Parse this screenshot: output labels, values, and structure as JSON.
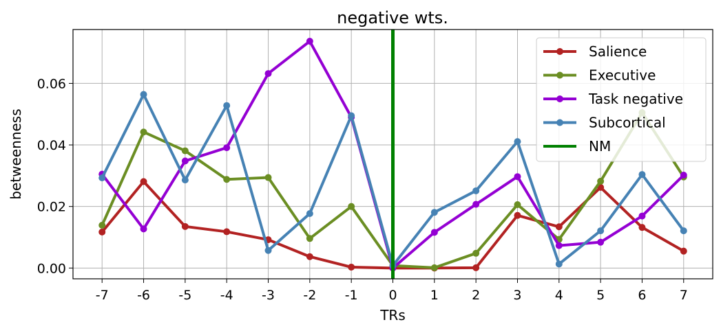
{
  "chart_data": {
    "type": "line",
    "title": "negative wts.",
    "xlabel": "TRs",
    "ylabel": "betweenness",
    "x": [
      -7,
      -6,
      -5,
      -4,
      -3,
      -2,
      -1,
      0,
      1,
      2,
      3,
      4,
      5,
      6,
      7
    ],
    "xtick_labels": [
      "-7",
      "-6",
      "-5",
      "-4",
      "-3",
      "-2",
      "-1",
      "0",
      "1",
      "2",
      "3",
      "4",
      "5",
      "6",
      "7"
    ],
    "ylim": [
      -0.0035,
      0.0775
    ],
    "yticks": [
      0.0,
      0.02,
      0.04,
      0.06
    ],
    "ytick_labels": [
      "0.00",
      "0.02",
      "0.04",
      "0.06"
    ],
    "grid": true,
    "legend_position": "top-right",
    "series": [
      {
        "name": "Salience",
        "color": "#b22222",
        "values": [
          0.0117,
          0.0281,
          0.0135,
          0.0118,
          0.0092,
          0.0037,
          0.0003,
          0.0,
          0.0,
          0.0001,
          0.0171,
          0.0134,
          0.0262,
          0.0132,
          0.0055
        ]
      },
      {
        "name": "Executive",
        "color": "#6b8e23",
        "values": [
          0.0139,
          0.0442,
          0.0381,
          0.0288,
          0.0294,
          0.0096,
          0.02,
          0.0008,
          0.0001,
          0.0048,
          0.0206,
          0.0093,
          0.0282,
          0.0505,
          0.0296
        ]
      },
      {
        "name": "Task negative",
        "color": "#9400d3",
        "values": [
          0.0305,
          0.0127,
          0.0348,
          0.0391,
          0.0632,
          0.0737,
          0.049,
          0.0,
          0.0116,
          0.0207,
          0.0297,
          0.0073,
          0.0084,
          0.0169,
          0.0302
        ]
      },
      {
        "name": "Subcortical",
        "color": "#4682b4",
        "values": [
          0.0293,
          0.0564,
          0.0286,
          0.0528,
          0.0057,
          0.0177,
          0.0495,
          0.0008,
          0.0181,
          0.0251,
          0.0411,
          0.0013,
          0.0121,
          0.0304,
          0.0121
        ]
      }
    ],
    "vline": {
      "name": "NM",
      "x": 0,
      "color": "#008000"
    }
  }
}
